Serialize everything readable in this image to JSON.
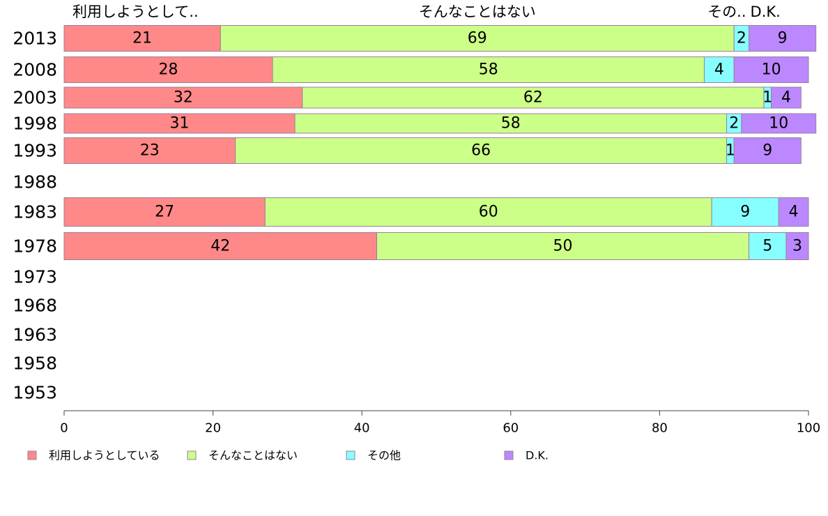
{
  "chart_data": {
    "type": "bar",
    "orientation": "horizontal",
    "stacked": true,
    "categories": [
      "2013",
      "2008",
      "2003",
      "1998",
      "1993",
      "1988",
      "1983",
      "1978",
      "1973",
      "1968",
      "1963",
      "1958",
      "1953"
    ],
    "series": [
      {
        "name": "利用しようとしている",
        "short_label": "利用しようとして..",
        "color": "#ff8888",
        "values": [
          21,
          28,
          32,
          31,
          23,
          null,
          27,
          42,
          null,
          null,
          null,
          null,
          null
        ]
      },
      {
        "name": "そんなことはない",
        "short_label": "そんなことはない",
        "color": "#ccff88",
        "values": [
          69,
          58,
          62,
          58,
          66,
          null,
          60,
          50,
          null,
          null,
          null,
          null,
          null
        ]
      },
      {
        "name": "その他",
        "short_label": "その..",
        "color": "#88ffff",
        "values": [
          2,
          4,
          1,
          2,
          1,
          null,
          9,
          5,
          null,
          null,
          null,
          null,
          null
        ]
      },
      {
        "name": "D.K.",
        "short_label": "D.K.",
        "color": "#bb88ff",
        "values": [
          9,
          10,
          4,
          10,
          9,
          null,
          4,
          3,
          null,
          null,
          null,
          null,
          null
        ]
      }
    ],
    "xlim": [
      0,
      100
    ],
    "xticks": [
      0,
      20,
      40,
      60,
      80,
      100
    ],
    "grid": false,
    "legend_position": "bottom"
  }
}
